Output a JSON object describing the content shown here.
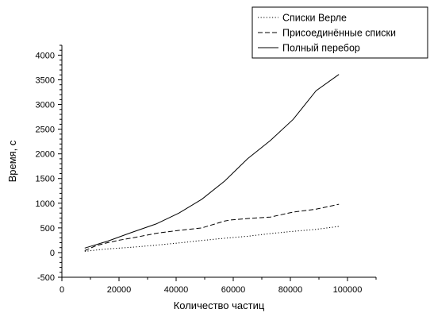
{
  "chart_data": {
    "type": "line",
    "xlabel": "Количество частиц",
    "ylabel": "Время, с",
    "xlim": [
      0,
      110000
    ],
    "ylim": [
      -500,
      4200
    ],
    "x_ticks": [
      0,
      20000,
      40000,
      60000,
      80000,
      100000
    ],
    "y_ticks": [
      -500,
      0,
      500,
      1000,
      1500,
      2000,
      2500,
      3000,
      3500,
      4000
    ],
    "grid": false,
    "legend_position": "top-right",
    "series": [
      {
        "name": "Списки Верле",
        "style": "dotted",
        "color": "#000000",
        "x": [
          8000,
          15000,
          25000,
          33000,
          41000,
          49000,
          57000,
          65000,
          73000,
          81000,
          89000,
          97000
        ],
        "y": [
          25,
          70,
          110,
          150,
          195,
          245,
          290,
          330,
          385,
          430,
          470,
          530
        ]
      },
      {
        "name": "Присоединённые списки",
        "style": "dashed",
        "color": "#000000",
        "x": [
          8000,
          12000,
          16000,
          20000,
          25000,
          33000,
          41000,
          49000,
          57000,
          59000,
          65000,
          73000,
          81000,
          89000,
          97000
        ],
        "y": [
          40,
          140,
          200,
          250,
          300,
          390,
          450,
          500,
          640,
          660,
          690,
          720,
          820,
          880,
          980
        ]
      },
      {
        "name": "Полный перебор",
        "style": "solid",
        "color": "#000000",
        "x": [
          8000,
          16000,
          24000,
          33000,
          41000,
          49000,
          57000,
          65000,
          73000,
          81000,
          89000,
          97000
        ],
        "y": [
          90,
          230,
          400,
          580,
          800,
          1080,
          1450,
          1900,
          2270,
          2700,
          3280,
          3610
        ]
      }
    ]
  }
}
